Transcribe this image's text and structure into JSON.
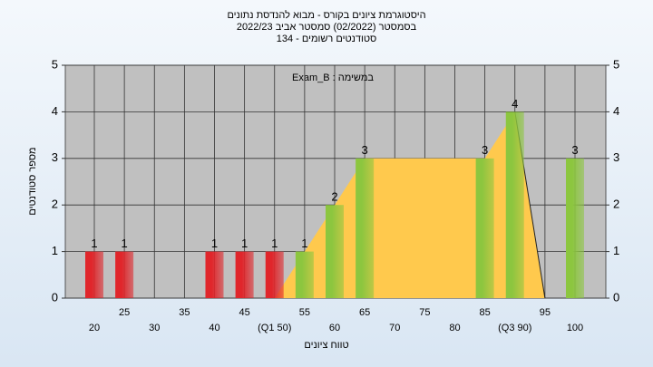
{
  "chart_data": {
    "type": "bar",
    "title": [
      "היסטוגרמת ציונים בקורס - מבוא להנדסת נתונים",
      "בסמסטר  (02/2022)  סמסטר אביב 2022/23",
      "סטודנטים רשומים - 134"
    ],
    "annotation": "Exam_B : במשימה",
    "y_label": "מספר סטודנטים",
    "x_label": "טווח ציונים",
    "categories": [
      "20",
      "25",
      "30",
      "35",
      "40",
      "45",
      "(Q1 50)",
      "55",
      "60",
      "65",
      "70",
      "75",
      "80",
      "85",
      "(Q3 90)",
      "95",
      "100"
    ],
    "values": [
      1,
      1,
      0,
      0,
      1,
      1,
      1,
      1,
      2,
      3,
      0,
      0,
      0,
      3,
      4,
      0,
      3
    ],
    "colors": [
      "#e0262b",
      "#e0262b",
      "#e0262b",
      "#e0262b",
      "#e0262b",
      "#e0262b",
      "#e0262b",
      "#8cc63f",
      "#8cc63f",
      "#8cc63f",
      "#8cc63f",
      "#8cc63f",
      "#8cc63f",
      "#8cc63f",
      "#8cc63f",
      "#8cc63f",
      "#8cc63f"
    ],
    "area": {
      "color": "#ffc94d",
      "values": [
        null,
        null,
        null,
        null,
        null,
        null,
        0,
        1,
        2,
        3,
        3,
        3,
        3,
        3,
        4,
        0,
        null
      ]
    },
    "ylim": [
      0,
      5
    ],
    "yticks": [
      0,
      1,
      2,
      3,
      4,
      5
    ],
    "grid": true
  }
}
